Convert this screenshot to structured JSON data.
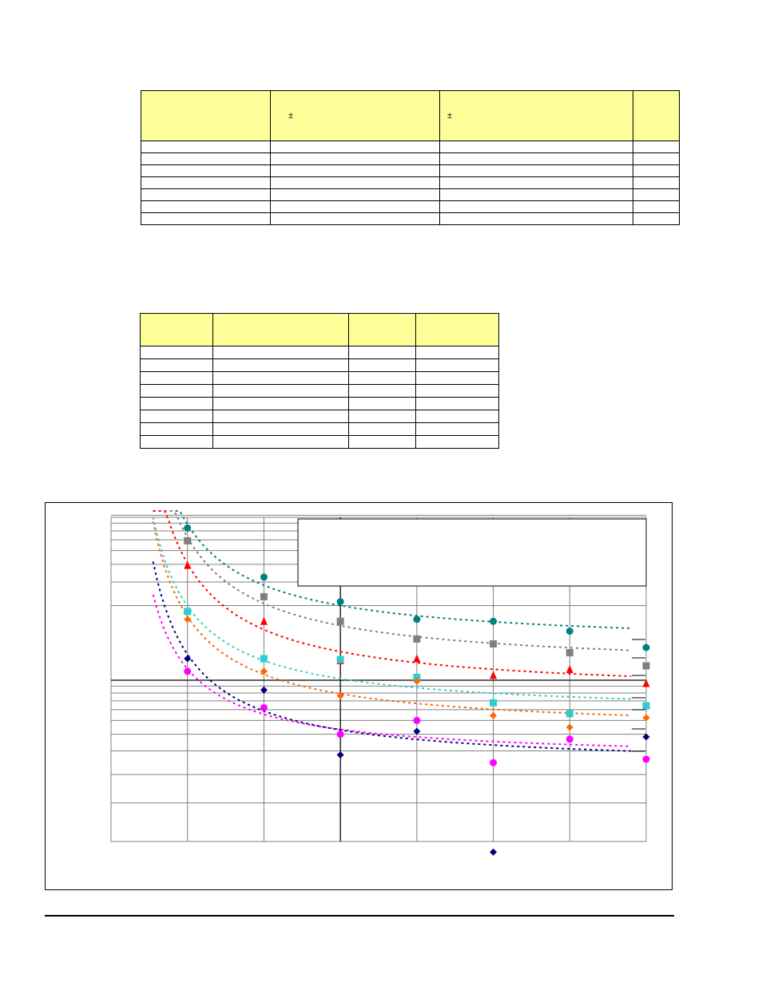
{
  "table1": {
    "headers": [
      "",
      "±",
      "±",
      ""
    ],
    "rows": [
      [
        "",
        "",
        "",
        ""
      ],
      [
        "",
        "",
        "",
        ""
      ],
      [
        "",
        "",
        "",
        ""
      ],
      [
        "",
        "",
        "",
        ""
      ],
      [
        "",
        "",
        "",
        ""
      ],
      [
        "",
        "",
        "",
        ""
      ],
      [
        "",
        "",
        "",
        ""
      ]
    ]
  },
  "table2": {
    "headers": [
      "",
      "",
      "",
      ""
    ],
    "rows": [
      [
        "",
        "",
        "",
        ""
      ],
      [
        "",
        "",
        "",
        ""
      ],
      [
        "",
        "",
        "",
        ""
      ],
      [
        "",
        "",
        "",
        ""
      ],
      [
        "",
        "",
        "",
        ""
      ],
      [
        "",
        "",
        "",
        ""
      ],
      [
        "",
        "",
        "",
        ""
      ],
      [
        "",
        "",
        "",
        ""
      ]
    ]
  },
  "chart_data": {
    "type": "scatter",
    "title": "",
    "xlabel": "",
    "ylabel": "",
    "x": [
      1,
      2,
      3,
      4,
      5,
      6
    ],
    "xlim": [
      0,
      7
    ],
    "ylim": [
      -2.0,
      2.0
    ],
    "grid": true,
    "legend_position": "right",
    "series": [
      {
        "color": "#008080",
        "marker": "circle",
        "values": [
          1.55,
          1.05,
          0.8,
          0.62,
          0.6,
          0.5
        ]
      },
      {
        "color": "#808080",
        "marker": "square",
        "values": [
          1.42,
          0.85,
          0.6,
          0.42,
          0.37,
          0.28
        ]
      },
      {
        "color": "#ff0000",
        "marker": "triangle",
        "values": [
          1.17,
          0.6,
          0.2,
          0.22,
          0.05,
          0.11
        ]
      },
      {
        "color": "#33cccc",
        "marker": "square",
        "values": [
          0.7,
          0.22,
          0.21,
          0.03,
          -0.23,
          -0.34
        ]
      },
      {
        "color": "#ff6600",
        "marker": "diamond",
        "values": [
          0.62,
          0.09,
          -0.16,
          -0.01,
          -0.36,
          -0.48
        ]
      },
      {
        "color": "#ff00ff",
        "marker": "circle",
        "values": [
          0.09,
          -0.28,
          -0.55,
          -0.41,
          -0.84,
          -0.6
        ]
      },
      {
        "color": "#000080",
        "marker": "diamond",
        "values": [
          0.22,
          -0.1,
          -0.76,
          -0.52,
          null,
          null
        ]
      }
    ],
    "outliers": [
      {
        "x": 5,
        "y": -1.75,
        "color": "#000080",
        "marker": "diamond"
      }
    ]
  }
}
